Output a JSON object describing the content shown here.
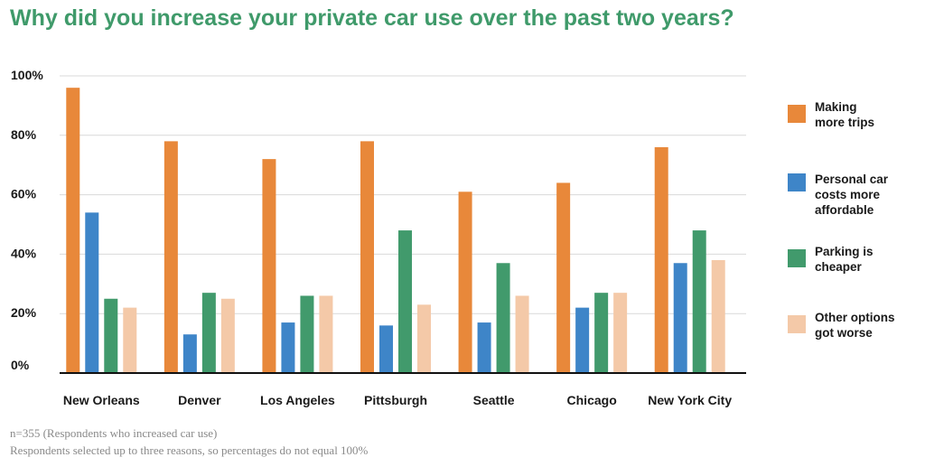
{
  "title": "Why did you increase your private car use over the past two years?",
  "chart_data": {
    "type": "bar",
    "title": "Why did you increase your private car use over the past two years?",
    "categories": [
      "New Orleans",
      "Denver",
      "Los Angeles",
      "Pittsburgh",
      "Seattle",
      "Chicago",
      "New York City"
    ],
    "series": [
      {
        "name": "Making\nmore trips",
        "color": "#e8883a",
        "values": [
          96,
          78,
          72,
          78,
          61,
          64,
          76
        ]
      },
      {
        "name": "Personal car\ncosts more\naffordable",
        "color": "#3e85c8",
        "values": [
          54,
          13,
          17,
          16,
          17,
          22,
          37
        ]
      },
      {
        "name": "Parking is\ncheaper",
        "color": "#419a6c",
        "values": [
          25,
          27,
          26,
          48,
          37,
          27,
          48
        ]
      },
      {
        "name": "Other options\ngot worse",
        "color": "#f4c9a8",
        "values": [
          22,
          25,
          26,
          23,
          26,
          27,
          38
        ]
      }
    ],
    "yticks": [
      "0%",
      "20%",
      "40%",
      "60%",
      "80%",
      "100%"
    ],
    "ylim": [
      0,
      100
    ],
    "grid": true,
    "legend_position": "right",
    "xlabel": "",
    "ylabel": ""
  },
  "footnotes": [
    "n=355 (Respondents who increased car use)",
    "Respondents selected up to three reasons, so percentages do not equal 100%"
  ]
}
